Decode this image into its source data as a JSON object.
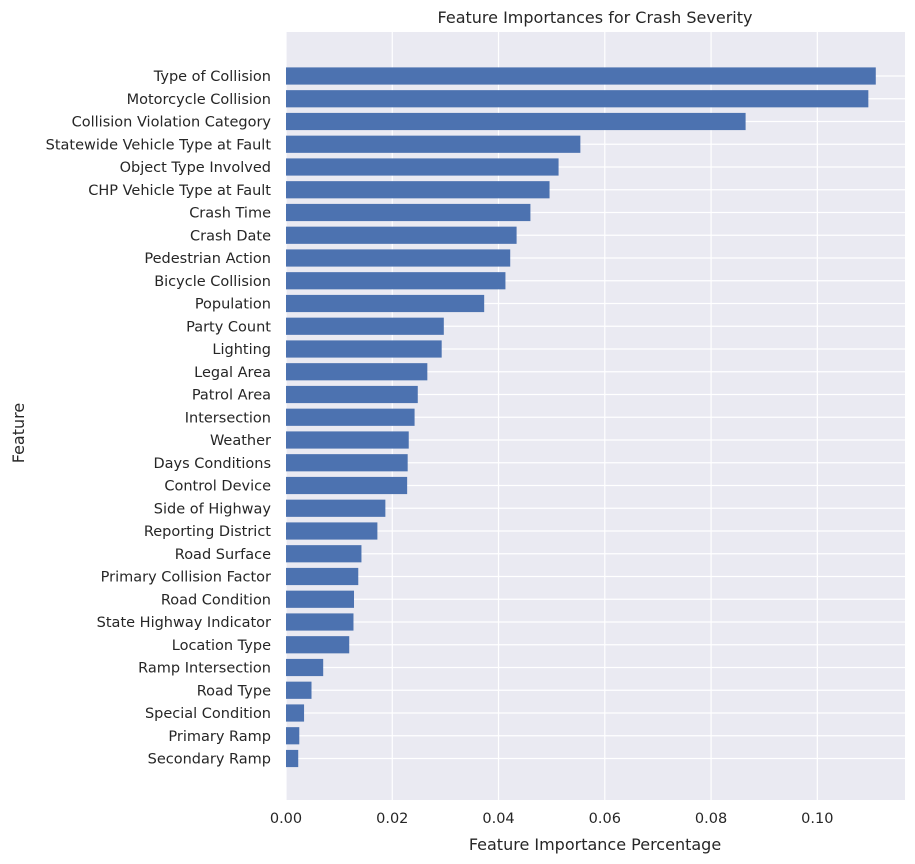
{
  "chart_data": {
    "type": "bar",
    "orientation": "horizontal",
    "title": "Feature Importances for Crash Severity",
    "xlabel": "Feature Importance Percentage",
    "ylabel": "Feature",
    "xlim": [
      0,
      0.1165
    ],
    "xticks": [
      0.0,
      0.02,
      0.04,
      0.06,
      0.08,
      0.1
    ],
    "xtick_labels": [
      "0.00",
      "0.02",
      "0.04",
      "0.06",
      "0.08",
      "0.10"
    ],
    "grid": true,
    "colors": {
      "background": "#eaeaf2",
      "bar": "#4c72b0",
      "grid": "#ffffff",
      "text": "#262626"
    },
    "categories": [
      "Type of Collision",
      "Motorcycle Collision",
      "Collision Violation Category",
      "Statewide Vehicle Type at Fault",
      "Object Type Involved",
      "CHP Vehicle Type at Fault",
      "Crash Time",
      "Crash Date",
      "Pedestrian Action",
      "Bicycle Collision",
      "Population",
      "Party Count",
      "Lighting",
      "Legal Area",
      "Patrol Area",
      "Intersection",
      "Weather",
      "Days Conditions",
      "Control Device",
      "Side of Highway",
      "Reporting District",
      "Road Surface",
      "Primary Collision Factor",
      "Road Condition",
      "State Highway Indicator",
      "Location Type",
      "Ramp Intersection",
      "Road Type",
      "Special Condition",
      "Primary Ramp",
      "Secondary Ramp"
    ],
    "values": [
      0.111,
      0.1096,
      0.0865,
      0.0554,
      0.0513,
      0.0496,
      0.046,
      0.0434,
      0.0422,
      0.0413,
      0.0373,
      0.0297,
      0.0293,
      0.0266,
      0.0248,
      0.0242,
      0.0231,
      0.0229,
      0.0228,
      0.0187,
      0.0172,
      0.0142,
      0.0136,
      0.0128,
      0.0127,
      0.0119,
      0.007,
      0.0048,
      0.0034,
      0.0025,
      0.0023
    ]
  }
}
